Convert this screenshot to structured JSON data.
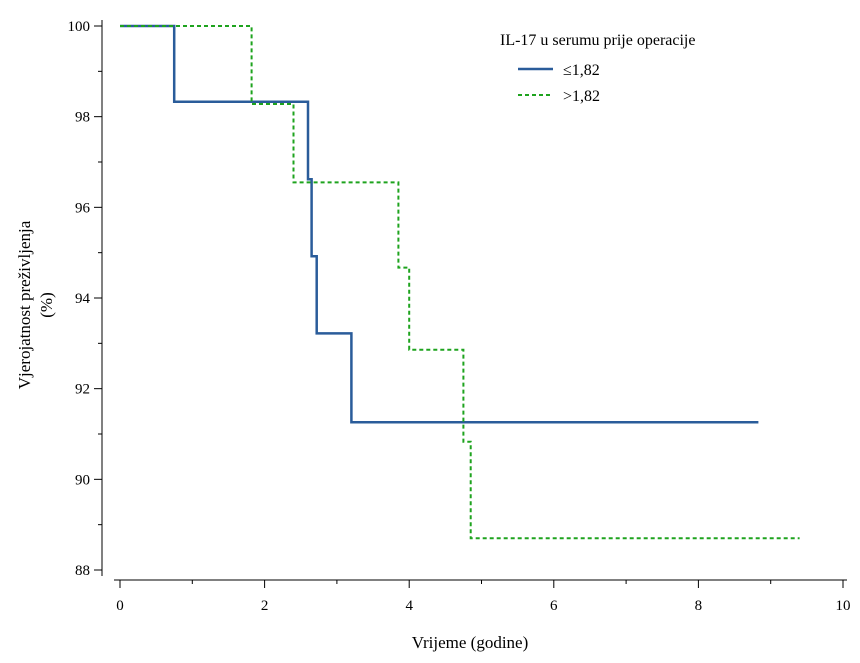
{
  "chart_data": {
    "type": "line",
    "step": true,
    "title": "",
    "xlabel": "Vrijeme (godine)",
    "ylabel_lines": [
      "Vjerojatnost preživljenja",
      "(%)"
    ],
    "xlim": [
      0,
      10
    ],
    "ylim": [
      88,
      100
    ],
    "xticks": [
      "0",
      "2",
      "4",
      "6",
      "8",
      "10"
    ],
    "yticks": [
      "88",
      "90",
      "92",
      "94",
      "96",
      "98",
      "100"
    ],
    "grid": false,
    "legend": {
      "title": "IL-17 u serumu prije operacije",
      "placement": "top-right"
    },
    "series": [
      {
        "name": "≤1,82",
        "color": "#2a5c9a",
        "style": "solid",
        "x": [
          0,
          0.75,
          0.75,
          2.6,
          2.6,
          2.65,
          2.65,
          2.72,
          2.72,
          3.2,
          3.2,
          4.03,
          4.03,
          8.83
        ],
        "y": [
          100,
          100,
          98.33,
          98.33,
          96.62,
          96.62,
          94.92,
          94.92,
          93.22,
          93.22,
          91.26,
          91.26,
          91.26,
          91.26
        ]
      },
      {
        "name": ">1,82",
        "color": "#1ea31e",
        "style": "dashed",
        "x": [
          0,
          1.82,
          1.82,
          2.4,
          2.4,
          3.85,
          3.85,
          4.0,
          4.0,
          4.75,
          4.75,
          4.85,
          4.85,
          9.4
        ],
        "y": [
          100,
          100,
          98.28,
          98.28,
          96.55,
          96.55,
          94.67,
          94.67,
          92.86,
          92.86,
          90.83,
          90.83,
          88.7,
          88.7
        ]
      }
    ]
  }
}
